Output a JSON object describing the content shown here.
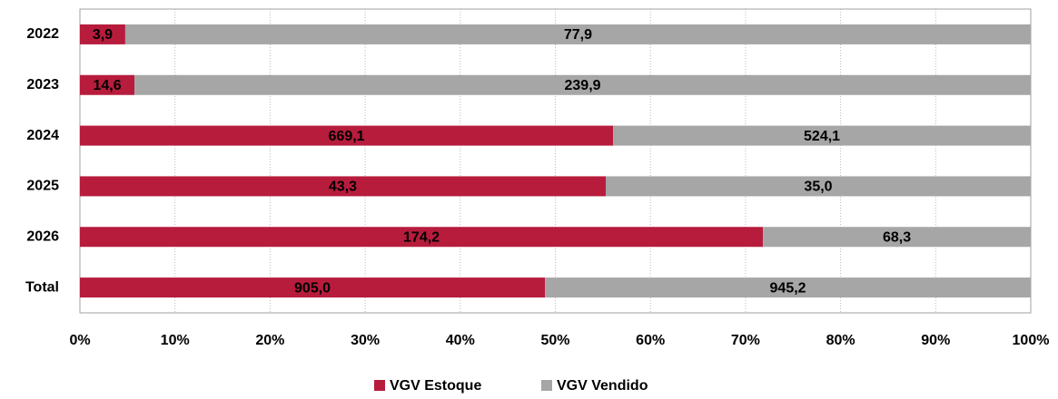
{
  "chart_data": {
    "type": "stacked_percent_bar",
    "categories": [
      "2022",
      "2023",
      "2024",
      "2025",
      "2026",
      "Total"
    ],
    "series": [
      {
        "name": "VGV Estoque",
        "color": "#b71c3c",
        "values": [
          3.9,
          14.6,
          669.1,
          43.3,
          174.2,
          905.0
        ],
        "value_labels": [
          "3,9",
          "14,6",
          "669,1",
          "43,3",
          "174,2",
          "905,0"
        ]
      },
      {
        "name": "VGV Vendido",
        "color": "#a6a6a6",
        "values": [
          77.9,
          239.9,
          524.1,
          35.0,
          68.3,
          945.2
        ],
        "value_labels": [
          "77,9",
          "239,9",
          "524,1",
          "35,0",
          "68,3",
          "945,2"
        ]
      }
    ],
    "xlim": [
      0,
      100
    ],
    "xticks": [
      {
        "value": 0,
        "label": "0%"
      },
      {
        "value": 10,
        "label": "10%"
      },
      {
        "value": 20,
        "label": "20%"
      },
      {
        "value": 30,
        "label": "30%"
      },
      {
        "value": 40,
        "label": "40%"
      },
      {
        "value": 50,
        "label": "50%"
      },
      {
        "value": 60,
        "label": "60%"
      },
      {
        "value": 70,
        "label": "70%"
      },
      {
        "value": 80,
        "label": "80%"
      },
      {
        "value": 90,
        "label": "90%"
      },
      {
        "value": 100,
        "label": "100%"
      }
    ],
    "grid": true,
    "legend": "bottom"
  }
}
